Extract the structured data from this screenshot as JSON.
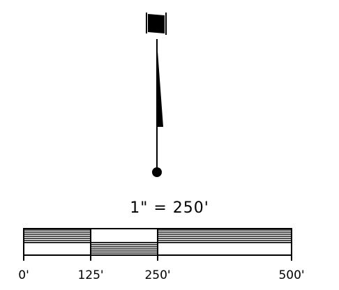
{
  "scale": {
    "ratio_text": "1\" = 250'",
    "ticks": [
      {
        "value": 0,
        "label": "0'"
      },
      {
        "value": 125,
        "label": "125'"
      },
      {
        "value": 250,
        "label": "250'"
      },
      {
        "value": 500,
        "label": "500'"
      }
    ],
    "max_value": 500
  },
  "colors": {
    "ink": "#000000",
    "paper": "#ffffff"
  }
}
